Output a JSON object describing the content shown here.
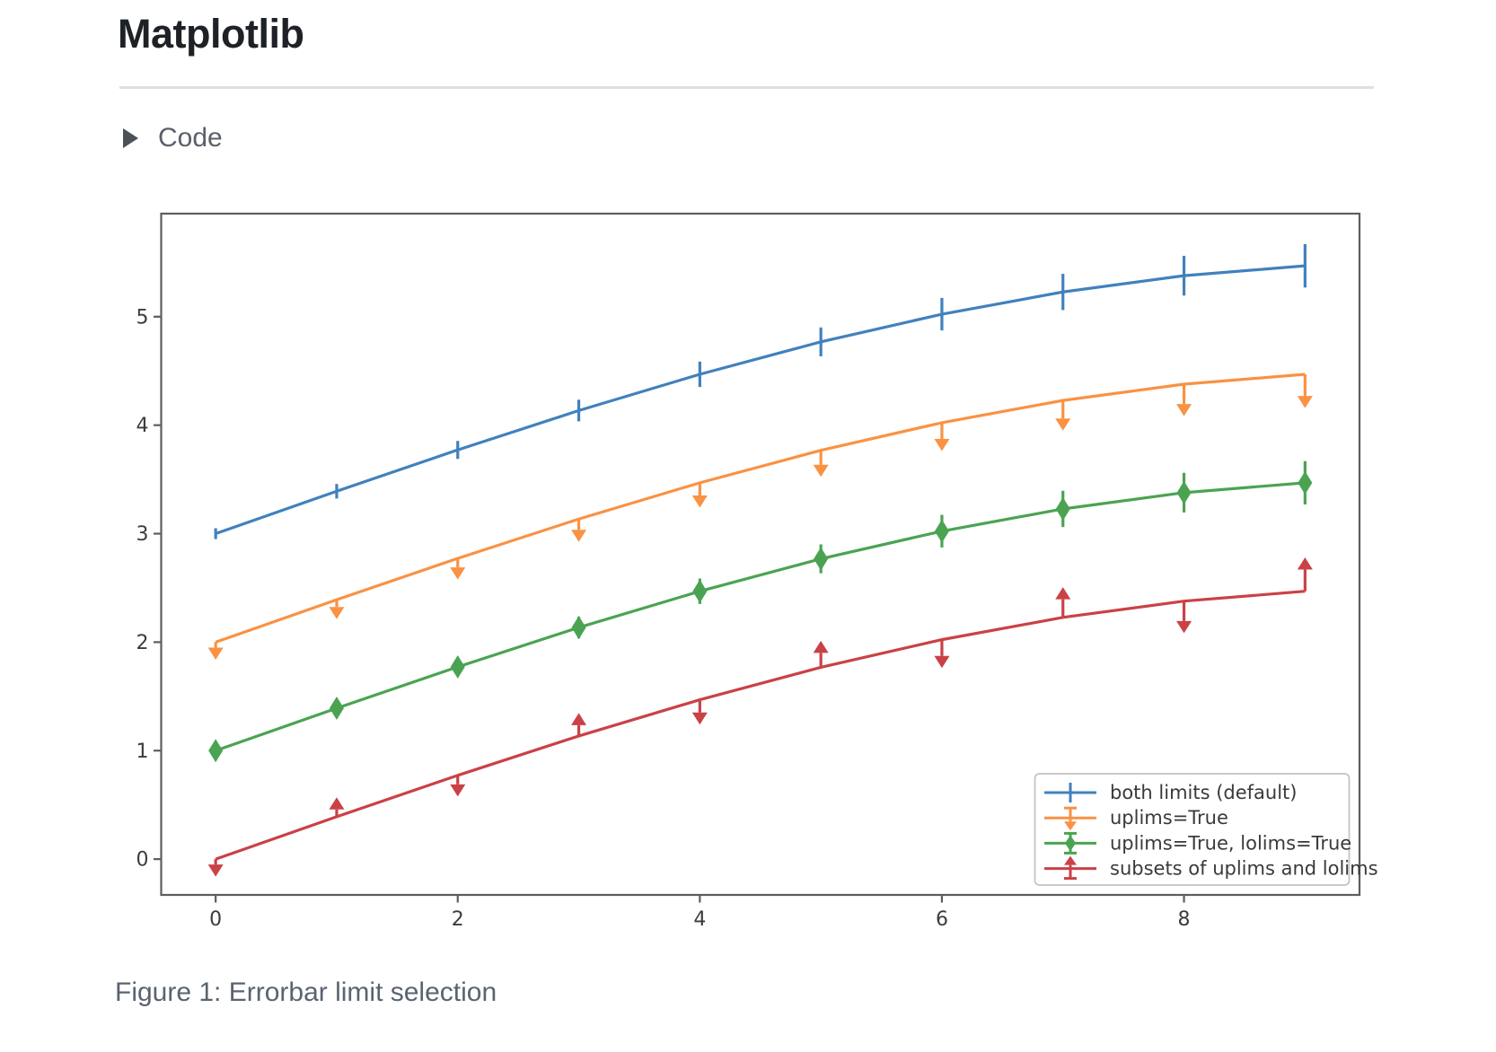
{
  "header": {
    "title": "Matplotlib"
  },
  "code_section": {
    "label": "Code",
    "state": "collapsed",
    "disclosure_icon": "triangle-right"
  },
  "figure": {
    "caption": "Figure 1: Errorbar limit selection"
  },
  "theme": {
    "background": "#ffffff",
    "title_color": "#1e2227",
    "divider_color": "#dce1e6",
    "code_label_color": "#59606a",
    "caption_color": "#5a6370",
    "axes_spine_color": "#5d5d5d",
    "tick_label_color": "#3c3c3c",
    "legend_border_color": "#c9c9c9",
    "legend_text_color": "#3a3a3a"
  },
  "chart_data": {
    "type": "line",
    "subtype": "errorbar",
    "title": "",
    "xlabel": "",
    "ylabel": "",
    "grid": false,
    "x": [
      0,
      1,
      2,
      3,
      4,
      5,
      6,
      7,
      8,
      9
    ],
    "xticks": [
      0,
      2,
      4,
      6,
      8
    ],
    "yticks": [
      0,
      1,
      2,
      3,
      4,
      5
    ],
    "xlim": [
      -0.45,
      9.45
    ],
    "ylim": [
      -0.33,
      5.95
    ],
    "legend_position": "lower right",
    "series": [
      {
        "name": "both limits (default)",
        "color": "#4181bd",
        "y": [
          3.0,
          3.391,
          3.772,
          4.135,
          4.469,
          4.768,
          5.023,
          5.228,
          5.378,
          5.469
        ],
        "yerr": [
          0.05,
          0.067,
          0.083,
          0.1,
          0.117,
          0.133,
          0.15,
          0.167,
          0.183,
          0.2
        ],
        "uplims": false,
        "lolims": false
      },
      {
        "name": "uplims=True",
        "color": "#f99243",
        "y": [
          2.0,
          2.391,
          2.772,
          3.135,
          3.469,
          3.768,
          4.023,
          4.228,
          4.378,
          4.469
        ],
        "yerr": [
          0.05,
          0.067,
          0.083,
          0.1,
          0.117,
          0.133,
          0.15,
          0.167,
          0.183,
          0.2
        ],
        "uplims": true,
        "lolims": false
      },
      {
        "name": "uplims=True, lolims=True",
        "color": "#4ba352",
        "y": [
          1.0,
          1.391,
          1.772,
          2.135,
          2.469,
          2.768,
          3.023,
          3.228,
          3.378,
          3.469
        ],
        "yerr": [
          0.05,
          0.067,
          0.083,
          0.1,
          0.117,
          0.133,
          0.15,
          0.167,
          0.183,
          0.2
        ],
        "uplims": true,
        "lolims": true
      },
      {
        "name": "subsets of uplims and lolims",
        "color": "#ca4146",
        "y": [
          0.0,
          0.391,
          0.772,
          1.135,
          1.469,
          1.768,
          2.023,
          2.228,
          2.378,
          2.469
        ],
        "yerr": [
          0.05,
          0.067,
          0.083,
          0.1,
          0.117,
          0.133,
          0.15,
          0.167,
          0.183,
          0.2
        ],
        "uplims": [
          true,
          false,
          true,
          false,
          true,
          false,
          true,
          false,
          true,
          false
        ],
        "lolims": [
          false,
          true,
          false,
          true,
          false,
          true,
          false,
          true,
          false,
          true
        ]
      }
    ]
  }
}
